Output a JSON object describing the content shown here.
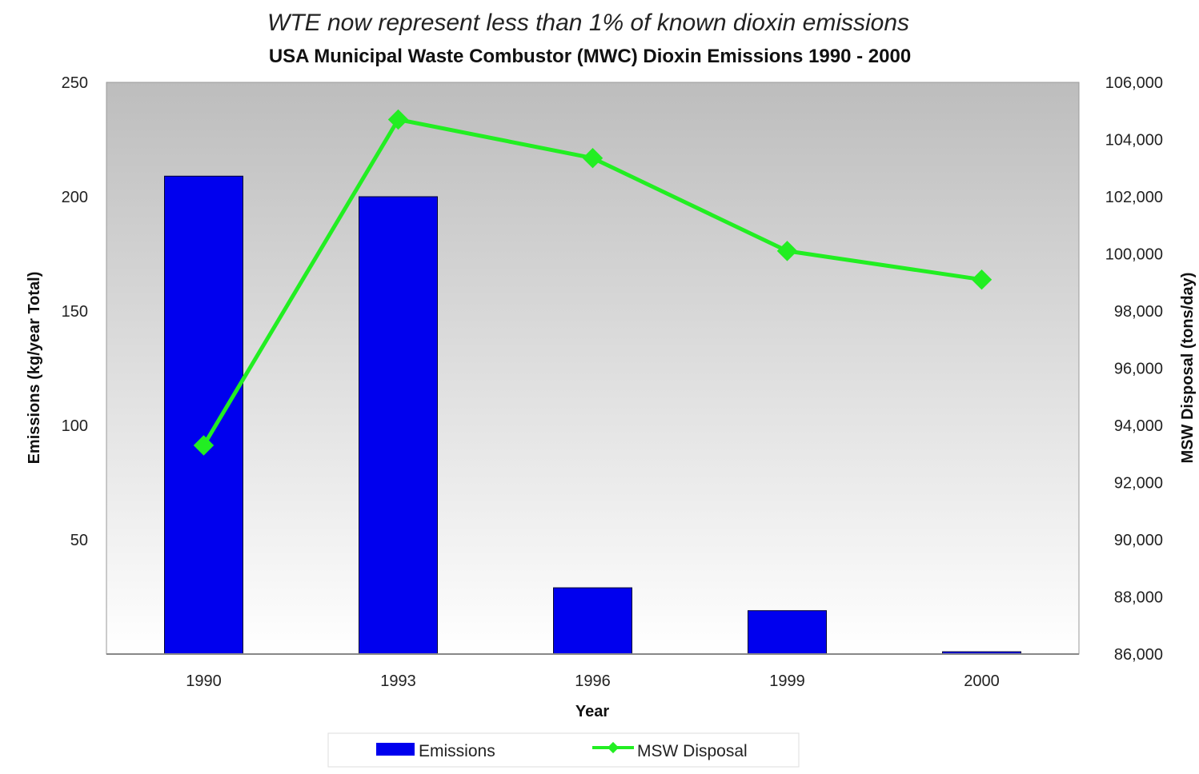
{
  "subtitle": "WTE now represent less than 1% of known dioxin emissions",
  "chart_data": {
    "type": "bar",
    "title": "USA Municipal Waste Combustor (MWC) Dioxin Emissions 1990 - 2000",
    "categories": [
      "1990",
      "1993",
      "1996",
      "1999",
      "2000"
    ],
    "xlabel": "Year",
    "ylabel": "Emissions (kg/year Total)",
    "y2label": "MSW Disposal (tons/day)",
    "ylim": [
      0,
      250
    ],
    "y2lim": [
      86000,
      106000
    ],
    "yticks": [
      "50",
      "100",
      "150",
      "200",
      "250"
    ],
    "y2ticks": [
      "86,000",
      "88,000",
      "90,000",
      "92,000",
      "94,000",
      "96,000",
      "98,000",
      "100,000",
      "102,000",
      "104,000",
      "106,000"
    ],
    "series": [
      {
        "name": "Emissions",
        "type": "bar",
        "axis": "left",
        "values": [
          209,
          200,
          29,
          19,
          1
        ],
        "color": "#0000ee"
      },
      {
        "name": "MSW Disposal",
        "type": "line",
        "axis": "right",
        "values": [
          93300,
          104700,
          103350,
          100100,
          99100
        ],
        "color": "#22ee22"
      }
    ],
    "legend": {
      "position": "bottom",
      "items": [
        "Emissions",
        "MSW Disposal"
      ]
    },
    "grid": false,
    "background": "gradient grey to white"
  }
}
